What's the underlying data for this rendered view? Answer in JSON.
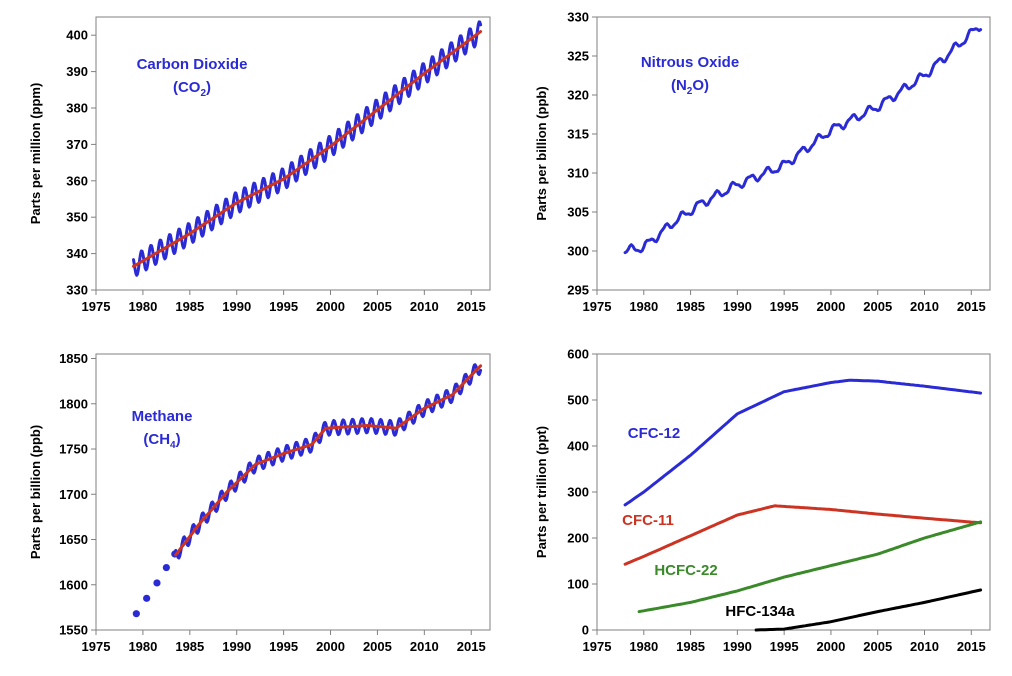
{
  "chart_data": [
    {
      "type": "line",
      "ylabel": "Parts per million (ppm)",
      "xlim": [
        1975,
        2017
      ],
      "ylim": [
        330,
        405
      ],
      "xticks": [
        1975,
        1980,
        1985,
        1990,
        1995,
        2000,
        2005,
        2010,
        2015
      ],
      "yticks": [
        330,
        340,
        350,
        360,
        370,
        380,
        390,
        400
      ],
      "grid": false,
      "annotations": [
        {
          "text": "Carbon Dioxide",
          "color": "#2b2bd6"
        },
        {
          "text": "(CO",
          "sub": "2",
          "tail": ")",
          "color": "#2b2bd6"
        }
      ],
      "series": [
        {
          "color": "#2b2bd6",
          "style": "seasonal",
          "x": [
            1979,
            1985,
            1990,
            1995,
            2000,
            2005,
            2010,
            2016
          ],
          "values": [
            336.5,
            345.5,
            354.0,
            360.5,
            369.5,
            379.5,
            389.5,
            401.0
          ],
          "amplitude": 3.0
        },
        {
          "color": "#cc3322",
          "style": "line",
          "x": [
            1979,
            1985,
            1990,
            1995,
            2000,
            2005,
            2010,
            2016
          ],
          "values": [
            336.5,
            345.5,
            354.0,
            360.5,
            369.5,
            379.5,
            389.5,
            401.0
          ]
        }
      ]
    },
    {
      "type": "line",
      "ylabel": "Parts per billion (ppb)",
      "xlim": [
        1975,
        2017
      ],
      "ylim": [
        295,
        330
      ],
      "xticks": [
        1975,
        1980,
        1985,
        1990,
        1995,
        2000,
        2005,
        2010,
        2015
      ],
      "yticks": [
        295,
        300,
        305,
        310,
        315,
        320,
        325,
        330
      ],
      "grid": false,
      "annotations": [
        {
          "text": "Nitrous Oxide",
          "color": "#2b2bd6"
        },
        {
          "text": "(N",
          "sub": "2",
          "tail": "O)",
          "color": "#2b2bd6"
        }
      ],
      "series": [
        {
          "color": "#2b2bd6",
          "style": "wiggly",
          "x": [
            1978,
            1980,
            1983,
            1986,
            1990,
            1995,
            2000,
            2005,
            2010,
            2016
          ],
          "values": [
            300.0,
            300.5,
            303.5,
            306.0,
            308.5,
            311.0,
            315.5,
            318.5,
            322.5,
            329.0
          ],
          "amplitude": 0.5
        }
      ]
    },
    {
      "type": "line",
      "ylabel": "Parts per billion (ppb)",
      "xlim": [
        1975,
        2017
      ],
      "ylim": [
        1550,
        1855
      ],
      "xticks": [
        1975,
        1980,
        1985,
        1990,
        1995,
        2000,
        2005,
        2010,
        2015
      ],
      "yticks": [
        1550,
        1600,
        1650,
        1700,
        1750,
        1800,
        1850
      ],
      "grid": false,
      "annotations": [
        {
          "text": "Methane",
          "color": "#2b2bd6"
        },
        {
          "text": "(CH",
          "sub": "4",
          "tail": ")",
          "color": "#2b2bd6"
        }
      ],
      "series": [
        {
          "color": "#2b2bd6",
          "style": "markers",
          "x": [
            1979.3,
            1980.4,
            1981.5,
            1982.5,
            1983.4
          ],
          "values": [
            1568,
            1585,
            1602,
            1619,
            1634
          ]
        },
        {
          "color": "#2b2bd6",
          "style": "seasonal",
          "x": [
            1983.5,
            1986,
            1989,
            1992,
            1995,
            1998,
            1999.5,
            2004,
            2007,
            2010,
            2013,
            2016
          ],
          "values": [
            1633,
            1667,
            1703,
            1733,
            1745,
            1755,
            1773,
            1776,
            1773,
            1795,
            1810,
            1842
          ],
          "amplitude": 8
        },
        {
          "color": "#cc3322",
          "style": "line",
          "x": [
            1983.5,
            1986,
            1989,
            1992,
            1995,
            1998,
            1999.5,
            2004,
            2007,
            2010,
            2013,
            2016
          ],
          "values": [
            1633,
            1667,
            1703,
            1733,
            1745,
            1755,
            1773,
            1776,
            1773,
            1795,
            1810,
            1842
          ]
        }
      ]
    },
    {
      "type": "line",
      "ylabel": "Parts per trillion (ppt)",
      "xlim": [
        1975,
        2017
      ],
      "ylim": [
        0,
        600
      ],
      "xticks": [
        1975,
        1980,
        1985,
        1990,
        1995,
        2000,
        2005,
        2010,
        2015
      ],
      "yticks": [
        0,
        100,
        200,
        300,
        400,
        500,
        600
      ],
      "grid": false,
      "annotations": [],
      "series": [
        {
          "name": "CFC-12",
          "color": "#2b2bd6",
          "style": "line",
          "x": [
            1978,
            1980,
            1985,
            1990,
            1995,
            2000,
            2002,
            2005,
            2010,
            2016
          ],
          "values": [
            272,
            300,
            380,
            470,
            518,
            538,
            543,
            541,
            530,
            515
          ]
        },
        {
          "name": "CFC-11",
          "color": "#cc3322",
          "style": "line",
          "x": [
            1978,
            1980,
            1985,
            1990,
            1994,
            2000,
            2005,
            2010,
            2016
          ],
          "values": [
            143,
            160,
            205,
            250,
            270,
            262,
            252,
            243,
            233
          ]
        },
        {
          "name": "HCFC-22",
          "color": "#3a8a2a",
          "style": "line",
          "x": [
            1979.5,
            1985,
            1990,
            1995,
            2000,
            2005,
            2010,
            2016
          ],
          "values": [
            40,
            60,
            85,
            115,
            140,
            165,
            200,
            235
          ]
        },
        {
          "name": "HFC-134a",
          "color": "#000000",
          "style": "line",
          "x": [
            1992,
            1995,
            2000,
            2005,
            2010,
            2016
          ],
          "values": [
            0,
            2,
            18,
            40,
            60,
            87
          ]
        }
      ]
    }
  ]
}
